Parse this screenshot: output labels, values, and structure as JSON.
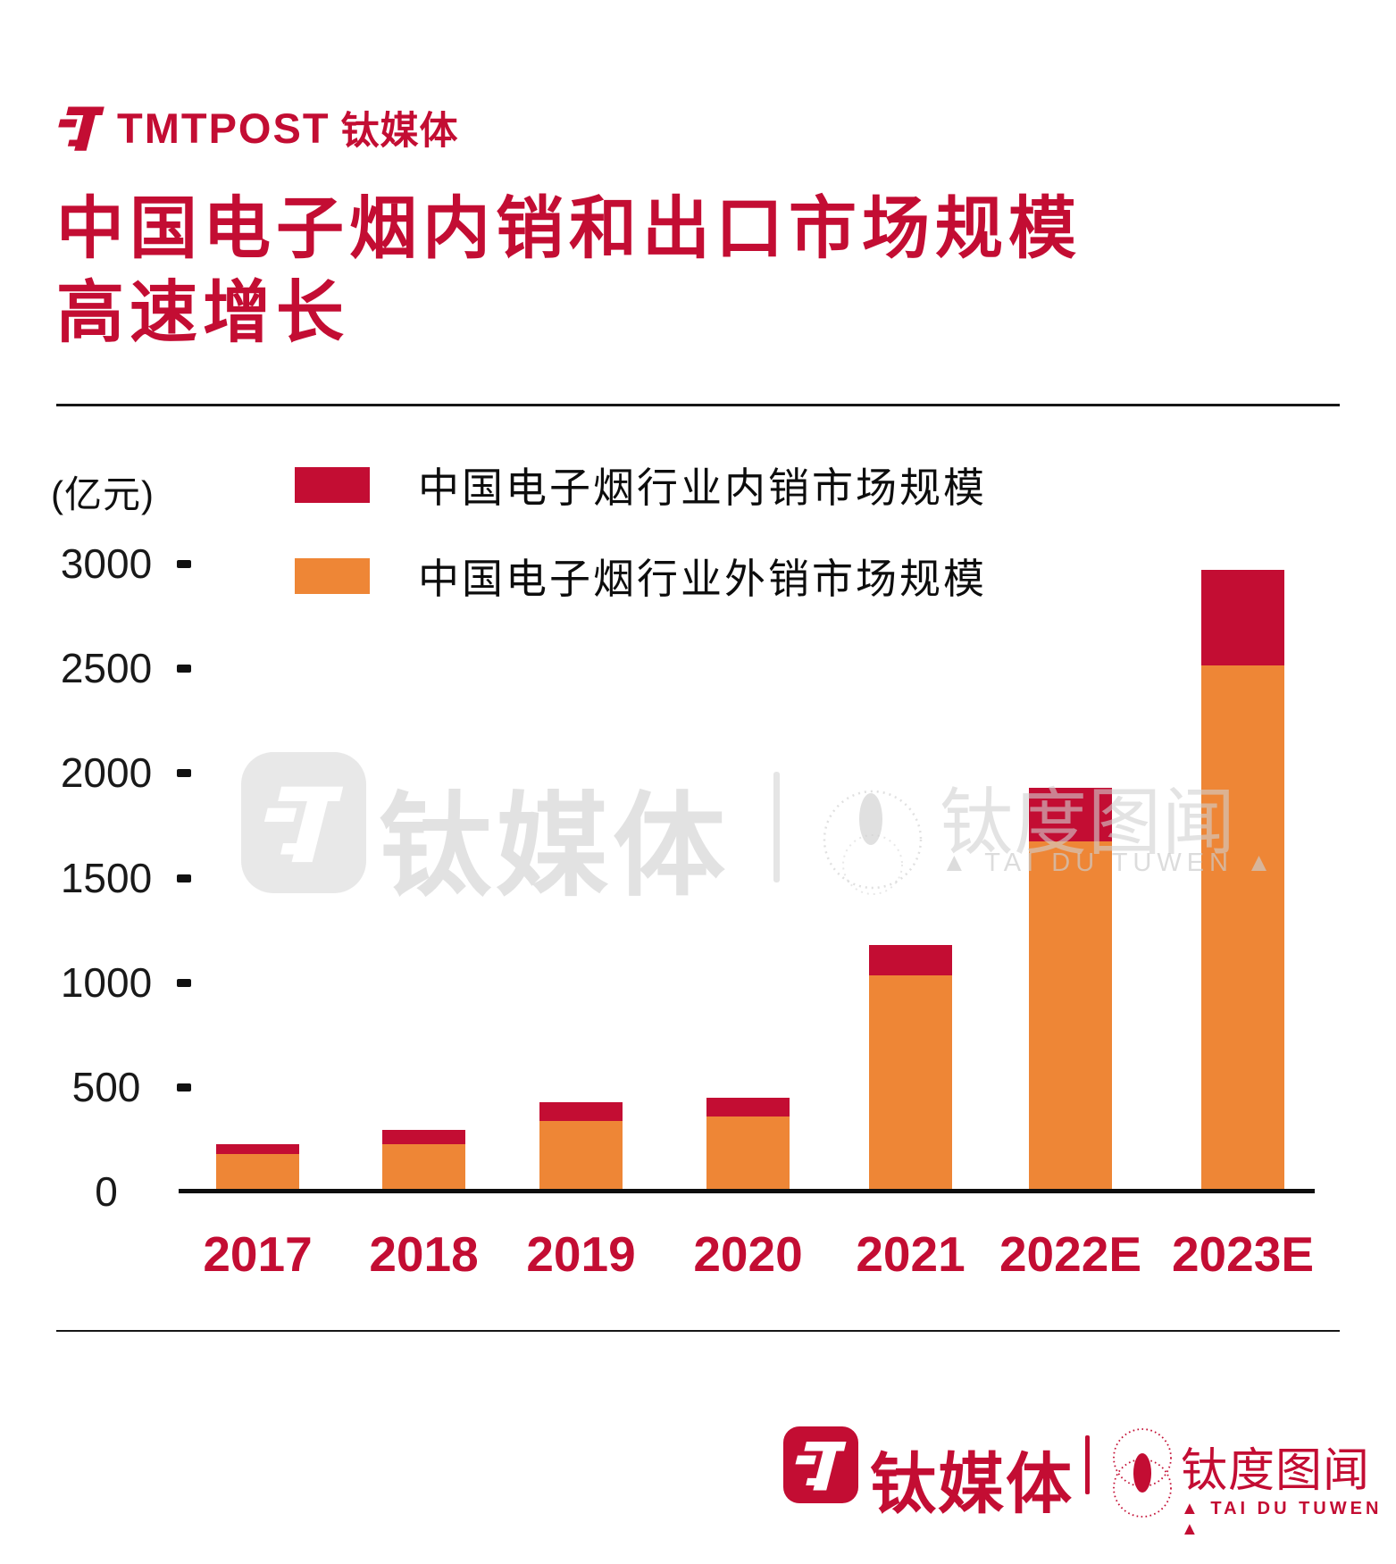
{
  "header": {
    "brand_en": "TMTPOST",
    "brand_cn": "钛媒体"
  },
  "title": {
    "line1": "中国电子烟内销和出口市场规模",
    "line2": "高速增长"
  },
  "chart_data": {
    "type": "bar",
    "stacked": true,
    "title": "中国电子烟内销和出口市场规模高速增长",
    "unit_label": "(亿元)",
    "categories": [
      "2017",
      "2018",
      "2019",
      "2020",
      "2021",
      "2022E",
      "2023E"
    ],
    "series": [
      {
        "name": "中国电子烟行业内销市场规模",
        "role": "domestic",
        "color": "#C30D33",
        "values": [
          45,
          70,
          90,
          90,
          145,
          255,
          455
        ]
      },
      {
        "name": "中国电子烟行业外销市场规模",
        "role": "export",
        "color": "#EE8636",
        "values": [
          165,
          215,
          325,
          345,
          1020,
          1660,
          2500
        ]
      }
    ],
    "stack_order_bottom_to_top": [
      "export",
      "domestic"
    ],
    "ylim": [
      0,
      3000
    ],
    "yticks": [
      0,
      500,
      1000,
      1500,
      2000,
      2500,
      3000
    ],
    "legend_position": "top-center",
    "grid": false
  },
  "watermark": {
    "brand_cn": "钛媒体",
    "divider": "|",
    "taidu_cn": "钛度图闻",
    "taidu_latin": "TAI DU TUWEN",
    "tri": "▲"
  },
  "footer": {
    "brand_cn": "钛媒体",
    "divider": "|",
    "taidu_cn": "钛度图闻",
    "taidu_latin": "TAI DU TUWEN",
    "tri": "▲"
  },
  "colors": {
    "accent_red": "#C30D33",
    "bar_orange": "#EE8636",
    "text_black": "#111111",
    "watermark_gray": "#D0D0D0"
  }
}
